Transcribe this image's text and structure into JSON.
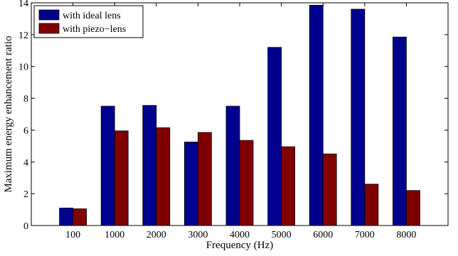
{
  "chart_data": {
    "type": "bar",
    "title": "",
    "xlabel": "Frequency (Hz)",
    "ylabel": "Maximum energy enhancement ratio",
    "categories": [
      "100",
      "1000",
      "2000",
      "3000",
      "4000",
      "5000",
      "6000",
      "7000",
      "8000"
    ],
    "series": [
      {
        "name": "with ideal lens",
        "color": "#00008f",
        "values": [
          1.1,
          7.5,
          7.55,
          5.25,
          7.5,
          11.2,
          13.85,
          13.6,
          11.85
        ]
      },
      {
        "name": "with piezo−lens",
        "color": "#800000",
        "values": [
          1.05,
          5.95,
          6.15,
          5.85,
          5.35,
          4.95,
          4.5,
          2.6,
          2.2
        ]
      }
    ],
    "ylim": [
      0,
      14
    ],
    "yticks": [
      "0",
      "2",
      "4",
      "6",
      "8",
      "10",
      "12",
      "14"
    ],
    "grid": false,
    "legend_position": "top-left"
  }
}
